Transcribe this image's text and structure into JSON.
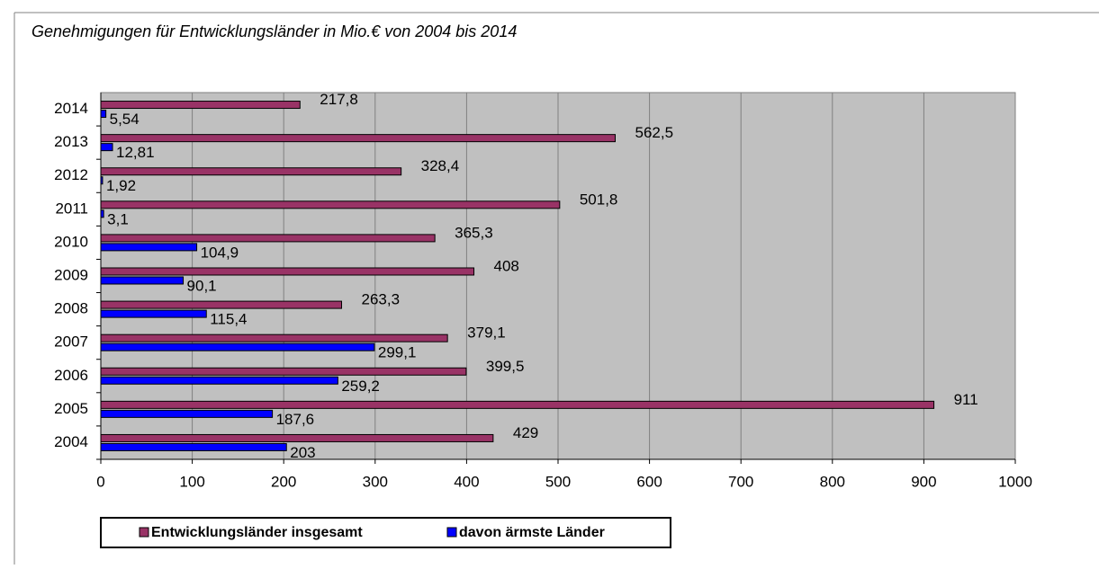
{
  "chart_data": {
    "type": "bar",
    "orientation": "horizontal",
    "title": "Genehmigungen für Entwicklungsländer in Mio.€ von 2004 bis 2014",
    "categories": [
      "2004",
      "2005",
      "2006",
      "2007",
      "2008",
      "2009",
      "2010",
      "2011",
      "2012",
      "2013",
      "2014"
    ],
    "series": [
      {
        "name": "Entwicklungsländer insgesamt",
        "color": "#993366",
        "values": [
          429,
          911,
          399.5,
          379.1,
          263.3,
          408,
          365.3,
          501.8,
          328.4,
          562.5,
          217.8
        ],
        "value_labels": [
          "429",
          "911",
          "399,5",
          "379,1",
          "263,3",
          "408",
          "365,3",
          "501,8",
          "328,4",
          "562,5",
          "217,8"
        ]
      },
      {
        "name": "davon ärmste Länder",
        "color": "#0000ff",
        "values": [
          203,
          187.6,
          259.2,
          299.1,
          115.4,
          90.1,
          104.9,
          3.1,
          1.92,
          12.81,
          5.54
        ],
        "value_labels": [
          "203",
          "187,6",
          "259,2",
          "299,1",
          "115,4",
          "90,1",
          "104,9",
          "3,1",
          "1,92",
          "12,81",
          "5,54"
        ]
      }
    ],
    "xlim": [
      0,
      1000
    ],
    "xticks": [
      0,
      100,
      200,
      300,
      400,
      500,
      600,
      700,
      800,
      900,
      1000
    ],
    "grid": true,
    "legend": "bottom"
  }
}
